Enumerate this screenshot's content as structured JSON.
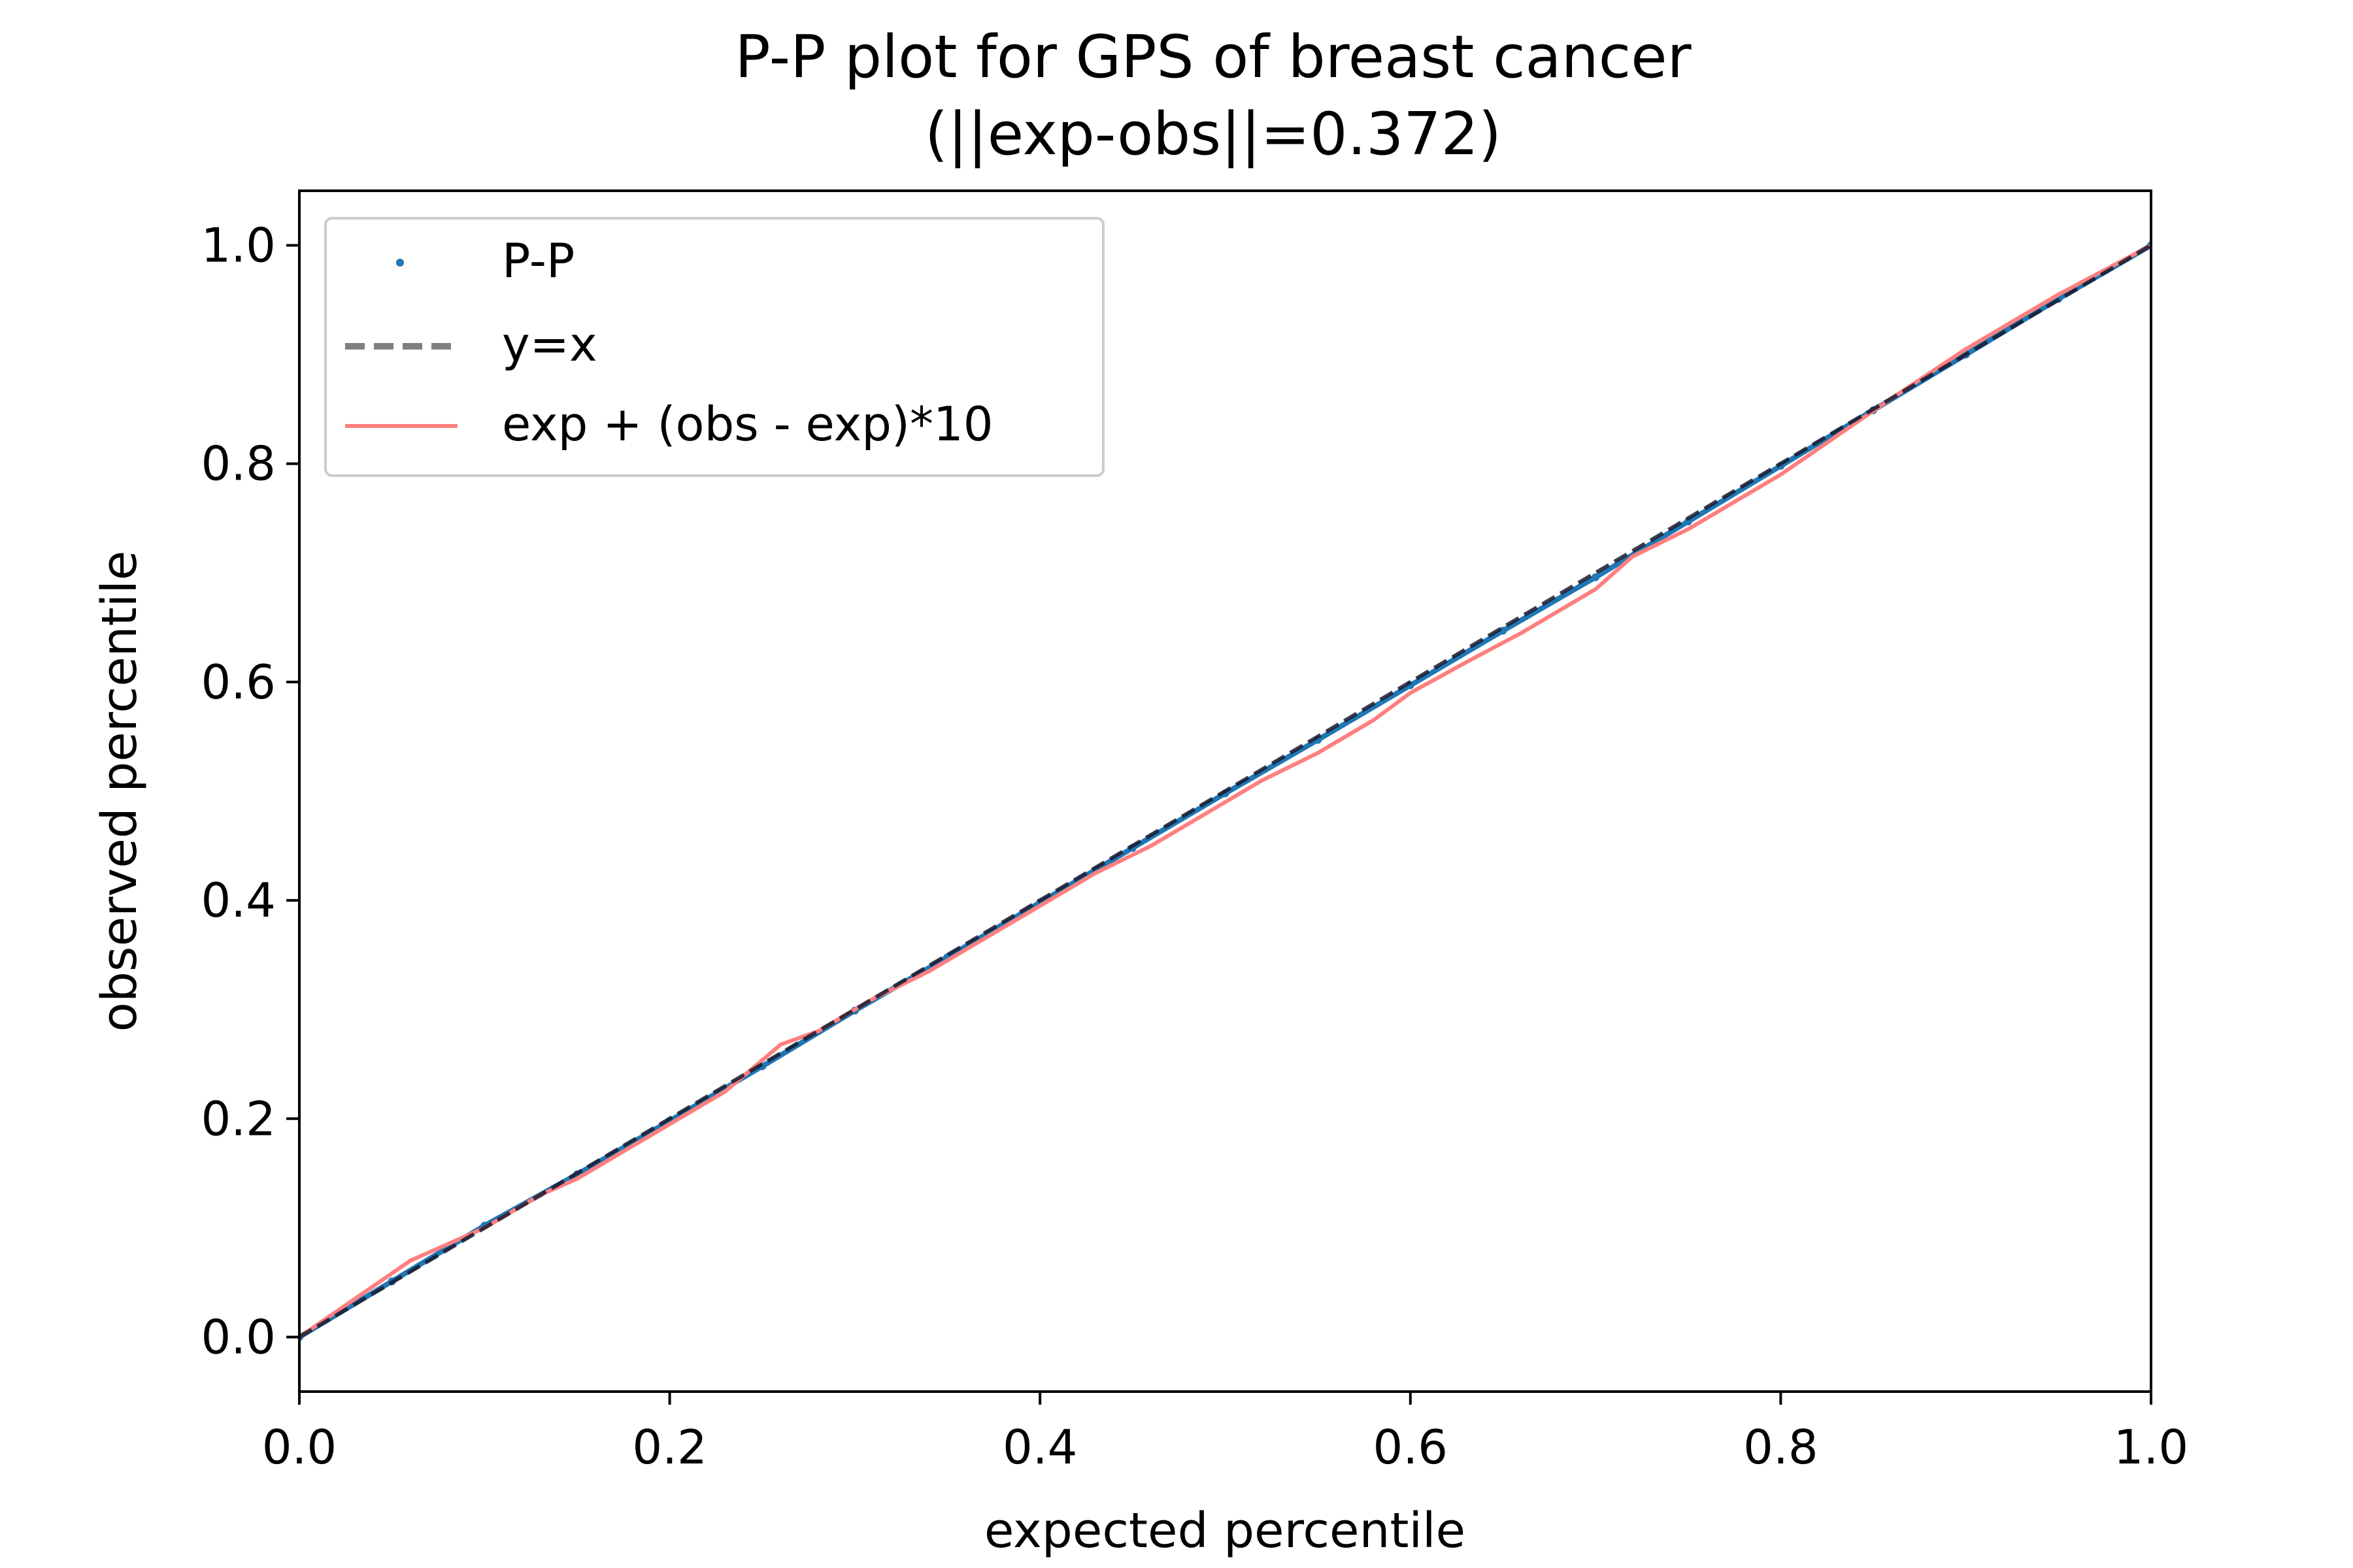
{
  "chart_data": {
    "type": "line",
    "title": "P-P plot for GPS of breast cancer",
    "subtitle": "(||exp-obs||=0.372)",
    "xlabel": "expected percentile",
    "ylabel": "observed percentile",
    "xlim": [
      0.0,
      1.0
    ],
    "ylim": [
      -0.05,
      1.05
    ],
    "xticks": [
      "0.0",
      "0.2",
      "0.4",
      "0.6",
      "0.8",
      "1.0"
    ],
    "yticks": [
      "0.0",
      "0.2",
      "0.4",
      "0.6",
      "0.8",
      "1.0"
    ],
    "grid": false,
    "legend_position": "top-left",
    "series": [
      {
        "name": "P-P",
        "kind": "points",
        "color": "#1f77b4",
        "x": [
          0.0,
          0.05,
          0.1,
          0.15,
          0.2,
          0.25,
          0.3,
          0.35,
          0.4,
          0.45,
          0.5,
          0.55,
          0.6,
          0.65,
          0.7,
          0.75,
          0.8,
          0.85,
          0.9,
          0.95,
          1.0
        ],
        "y": [
          0.0,
          0.051,
          0.102,
          0.149,
          0.198,
          0.248,
          0.299,
          0.348,
          0.398,
          0.448,
          0.498,
          0.547,
          0.597,
          0.647,
          0.696,
          0.747,
          0.798,
          0.849,
          0.9,
          0.951,
          1.0
        ]
      },
      {
        "name": "y=x",
        "kind": "dashed",
        "color": "#808080",
        "x": [
          0.0,
          1.0
        ],
        "y": [
          0.0,
          1.0
        ]
      },
      {
        "name": "exp + (obs - exp)*10",
        "kind": "line",
        "color": "#ff7f7f",
        "x": [
          0.0,
          0.03,
          0.06,
          0.08,
          0.1,
          0.13,
          0.15,
          0.18,
          0.2,
          0.23,
          0.26,
          0.28,
          0.31,
          0.34,
          0.36,
          0.4,
          0.43,
          0.46,
          0.49,
          0.52,
          0.55,
          0.58,
          0.6,
          0.63,
          0.66,
          0.69,
          0.7,
          0.72,
          0.75,
          0.78,
          0.8,
          0.83,
          0.86,
          0.9,
          0.92,
          0.95,
          1.0
        ],
        "y": [
          0.0,
          0.035,
          0.07,
          0.085,
          0.1,
          0.13,
          0.145,
          0.175,
          0.195,
          0.225,
          0.268,
          0.28,
          0.31,
          0.335,
          0.355,
          0.395,
          0.425,
          0.45,
          0.48,
          0.51,
          0.535,
          0.565,
          0.59,
          0.618,
          0.645,
          0.675,
          0.685,
          0.715,
          0.74,
          0.77,
          0.79,
          0.825,
          0.86,
          0.905,
          0.925,
          0.955,
          1.0
        ]
      }
    ]
  }
}
